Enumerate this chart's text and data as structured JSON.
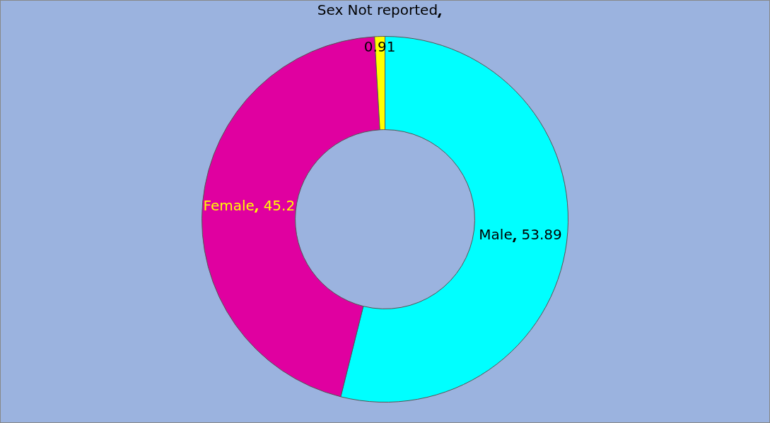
{
  "chart_data": {
    "type": "donut",
    "categories": [
      "Male",
      "Female",
      "Sex Not reported"
    ],
    "values": [
      53.89,
      45.2,
      0.91
    ],
    "colors": [
      "#00ffff",
      "#e000a0",
      "#ffff00"
    ],
    "data_labels": true,
    "legend": false
  }
}
